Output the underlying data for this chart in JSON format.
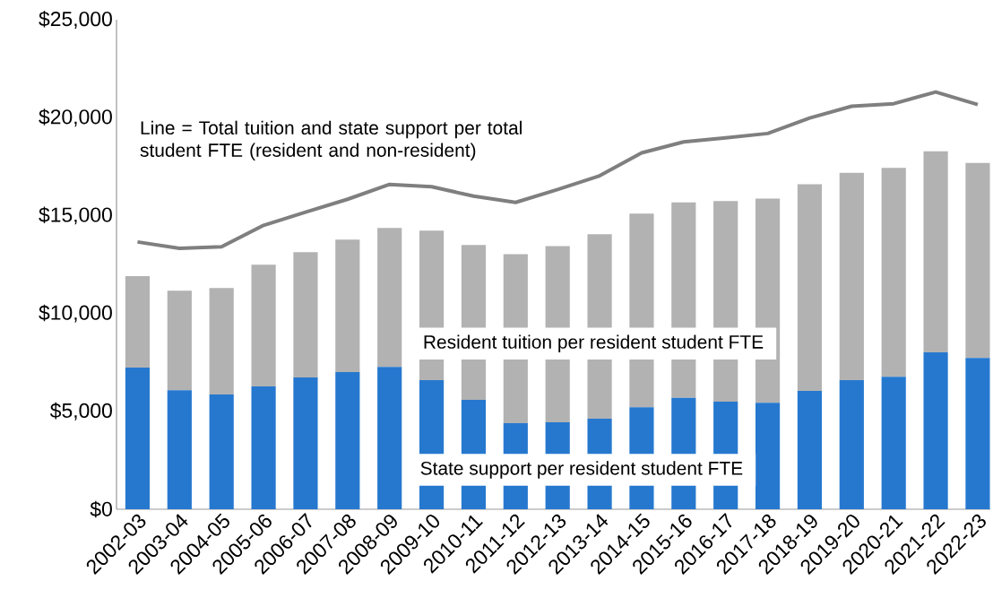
{
  "chart_data": {
    "type": "bar",
    "stacked": true,
    "categories": [
      "2002-03",
      "2003-04",
      "2004-05",
      "2005-06",
      "2006-07",
      "2007-08",
      "2008-09",
      "2009-10",
      "2010-11",
      "2011-12",
      "2012-13",
      "2013-14",
      "2014-15",
      "2015-16",
      "2016-17",
      "2017-18",
      "2018-19",
      "2019-20",
      "2020-21",
      "2021-22",
      "2022-23"
    ],
    "ylim": [
      0,
      25000
    ],
    "yticks": [
      {
        "value": 0,
        "label": "$0"
      },
      {
        "value": 5000,
        "label": "$5,000"
      },
      {
        "value": 10000,
        "label": "$10,000"
      },
      {
        "value": 15000,
        "label": "$15,000"
      },
      {
        "value": 20000,
        "label": "$20,000"
      },
      {
        "value": 25000,
        "label": "$25,000"
      }
    ],
    "series": [
      {
        "name": "State support per resident student FTE",
        "color": "#2678cf",
        "values": [
          7230,
          6080,
          5860,
          6270,
          6730,
          7000,
          7270,
          6590,
          5580,
          4390,
          4440,
          4620,
          5210,
          5690,
          5490,
          5440,
          6040,
          6590,
          6770,
          8010,
          7730
        ]
      },
      {
        "name": "Resident tuition per resident student FTE",
        "color": "#b2b2b2",
        "values": [
          4670,
          5080,
          5440,
          6220,
          6400,
          6770,
          7100,
          7640,
          7920,
          8640,
          9000,
          9430,
          9890,
          9980,
          10250,
          10430,
          10560,
          10590,
          10660,
          10270,
          9950
        ]
      },
      {
        "name": "Line = Total tuition and state support per total student FTE (resident and non-resident)",
        "type": "line",
        "color": "#7f7f7f",
        "values": [
          13650,
          13320,
          13400,
          14500,
          15170,
          15830,
          16590,
          16470,
          15990,
          15670,
          16330,
          17030,
          18200,
          18760,
          18970,
          19190,
          19980,
          20580,
          20710,
          21310,
          20670
        ]
      }
    ]
  }
}
